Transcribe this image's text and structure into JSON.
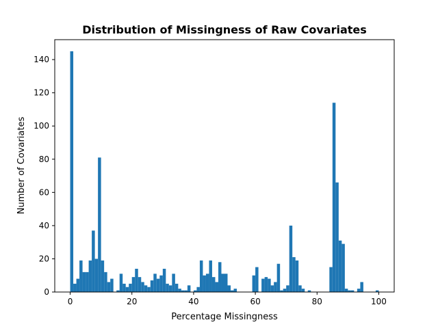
{
  "chart_data": {
    "type": "bar",
    "title": "Distribution of Missingness of Raw Covariates",
    "xlabel": "Percentage Missingness",
    "ylabel": "Number of Covariates",
    "xlim": [
      -5,
      105
    ],
    "ylim": [
      0,
      152
    ],
    "xticks": [
      0,
      20,
      40,
      60,
      80,
      100
    ],
    "yticks": [
      0,
      20,
      40,
      60,
      80,
      100,
      120,
      140
    ],
    "bin_width": 1,
    "bar_color": "#1f77b4",
    "grid": false,
    "legend": "none",
    "bins": [
      [
        0,
        145
      ],
      [
        1,
        5
      ],
      [
        2,
        8
      ],
      [
        3,
        19
      ],
      [
        4,
        12
      ],
      [
        5,
        12
      ],
      [
        6,
        19
      ],
      [
        7,
        37
      ],
      [
        8,
        20
      ],
      [
        9,
        81
      ],
      [
        10,
        19
      ],
      [
        11,
        12
      ],
      [
        12,
        6
      ],
      [
        13,
        8
      ],
      [
        14,
        0
      ],
      [
        15,
        1
      ],
      [
        16,
        11
      ],
      [
        17,
        5
      ],
      [
        18,
        3
      ],
      [
        19,
        5
      ],
      [
        20,
        9
      ],
      [
        21,
        14
      ],
      [
        22,
        9
      ],
      [
        23,
        6
      ],
      [
        24,
        4
      ],
      [
        25,
        3
      ],
      [
        26,
        7
      ],
      [
        27,
        11
      ],
      [
        28,
        8
      ],
      [
        29,
        10
      ],
      [
        30,
        14
      ],
      [
        31,
        5
      ],
      [
        32,
        4
      ],
      [
        33,
        11
      ],
      [
        34,
        5
      ],
      [
        35,
        2
      ],
      [
        36,
        1
      ],
      [
        37,
        1
      ],
      [
        38,
        4
      ],
      [
        39,
        0
      ],
      [
        40,
        1
      ],
      [
        41,
        3
      ],
      [
        42,
        19
      ],
      [
        43,
        10
      ],
      [
        44,
        11
      ],
      [
        45,
        19
      ],
      [
        46,
        9
      ],
      [
        47,
        6
      ],
      [
        48,
        18
      ],
      [
        49,
        11
      ],
      [
        50,
        11
      ],
      [
        51,
        4
      ],
      [
        52,
        1
      ],
      [
        53,
        2
      ],
      [
        54,
        0
      ],
      [
        55,
        0
      ],
      [
        56,
        0
      ],
      [
        57,
        0
      ],
      [
        58,
        0
      ],
      [
        59,
        10
      ],
      [
        60,
        15
      ],
      [
        61,
        0
      ],
      [
        62,
        8
      ],
      [
        63,
        9
      ],
      [
        64,
        8
      ],
      [
        65,
        4
      ],
      [
        66,
        6
      ],
      [
        67,
        17
      ],
      [
        68,
        1
      ],
      [
        69,
        2
      ],
      [
        70,
        4
      ],
      [
        71,
        40
      ],
      [
        72,
        21
      ],
      [
        73,
        19
      ],
      [
        74,
        4
      ],
      [
        75,
        2
      ],
      [
        76,
        0
      ],
      [
        77,
        1
      ],
      [
        78,
        0
      ],
      [
        79,
        0
      ],
      [
        80,
        0
      ],
      [
        81,
        0
      ],
      [
        82,
        0
      ],
      [
        83,
        0
      ],
      [
        84,
        15
      ],
      [
        85,
        114
      ],
      [
        86,
        66
      ],
      [
        87,
        31
      ],
      [
        88,
        29
      ],
      [
        89,
        2
      ],
      [
        90,
        1
      ],
      [
        91,
        1
      ],
      [
        92,
        0
      ],
      [
        93,
        2
      ],
      [
        94,
        6
      ],
      [
        95,
        0
      ],
      [
        96,
        0
      ],
      [
        97,
        0
      ],
      [
        98,
        0
      ],
      [
        99,
        1
      ]
    ]
  }
}
